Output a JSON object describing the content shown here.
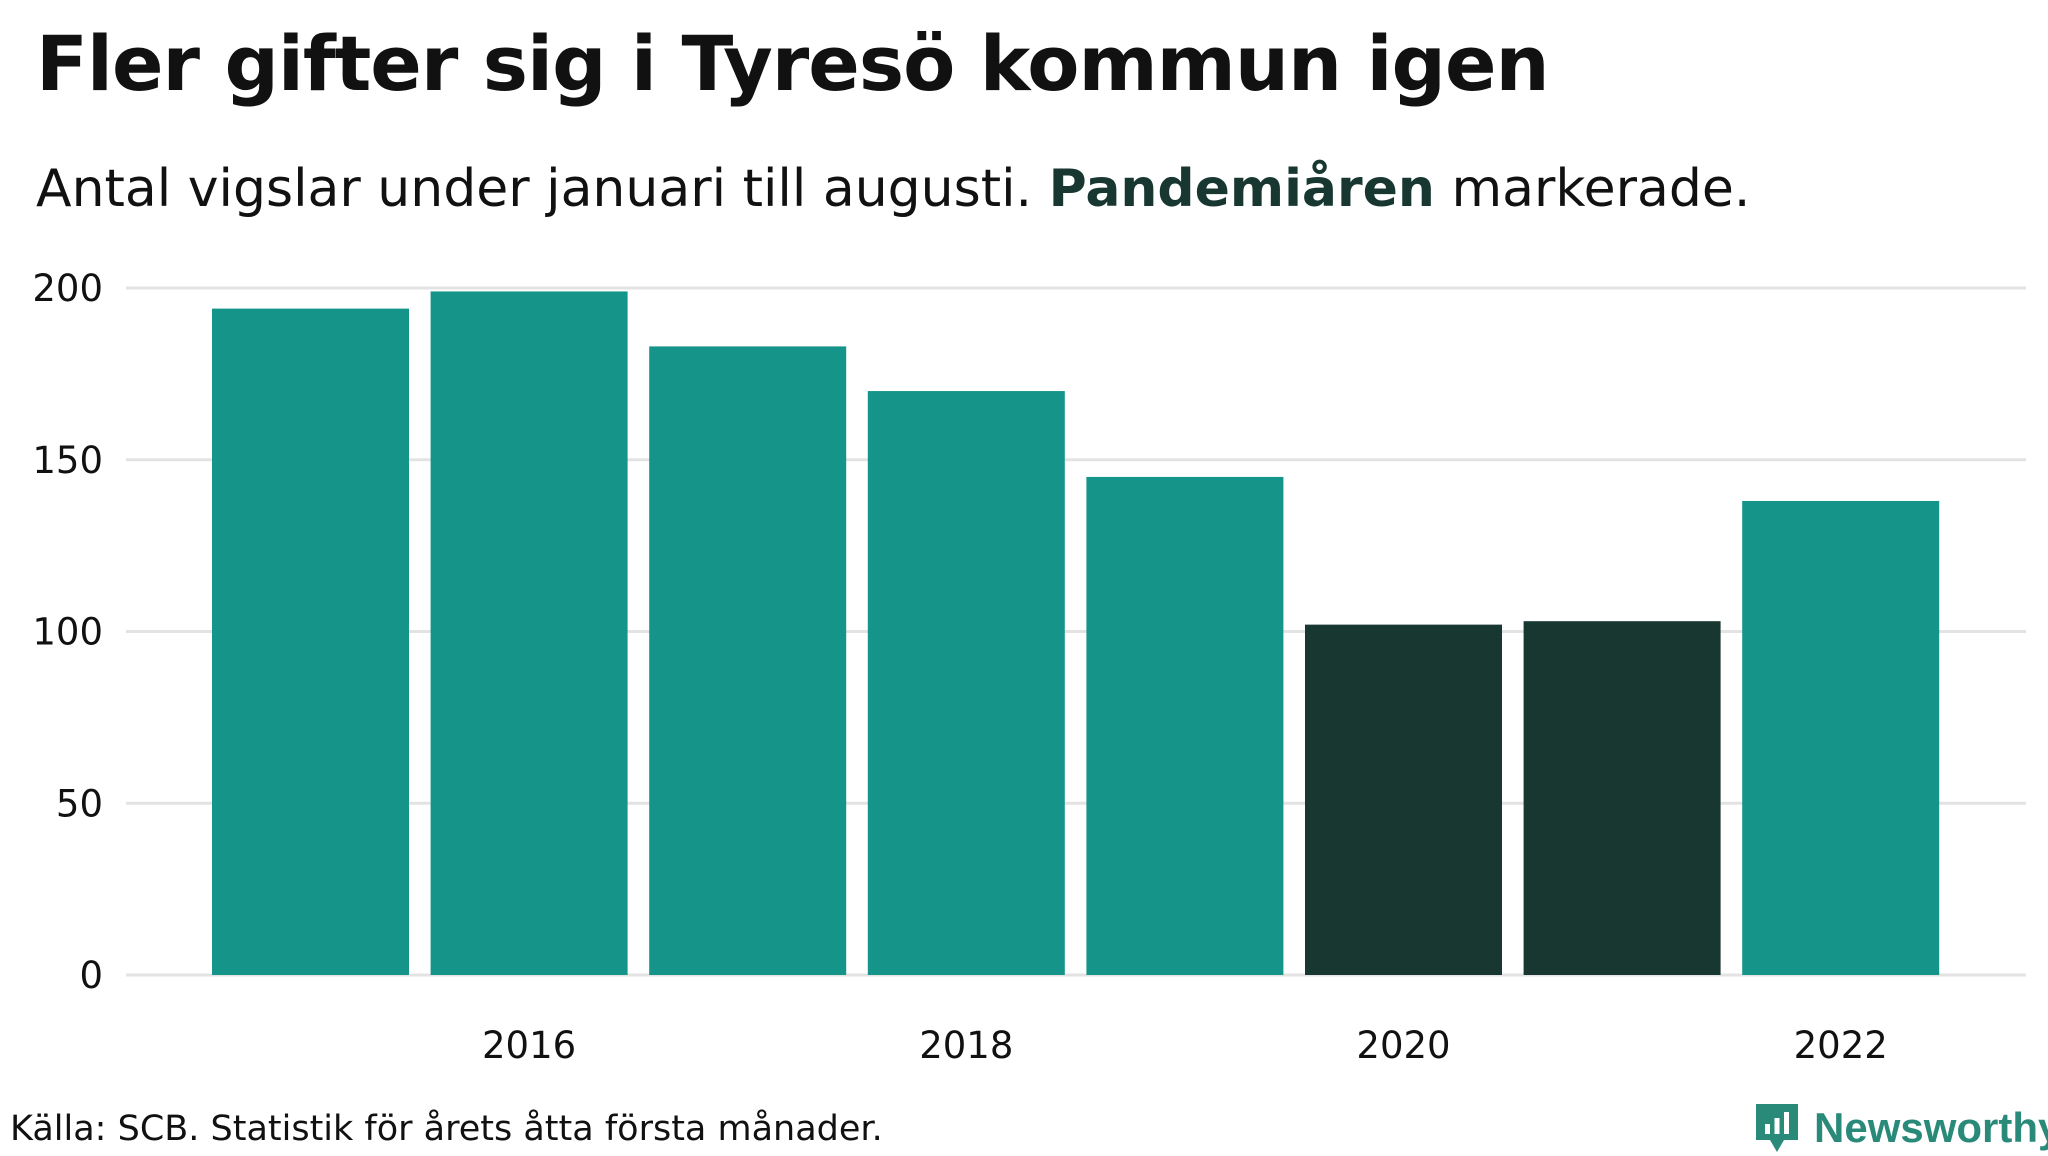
{
  "colors": {
    "bar": "#159589",
    "highlight": "#183731",
    "grid": "#e3e3e3",
    "text": "#111111",
    "logo": "#2a8a7a"
  },
  "header": {
    "title": "Fler gifter sig i Tyresö kommun igen",
    "subtitle_before": "Antal vigslar under januari till augusti. ",
    "subtitle_highlight": "Pandemiåren",
    "subtitle_after": " markerade."
  },
  "chart_data": {
    "type": "bar",
    "title": "Fler gifter sig i Tyresö kommun igen",
    "subtitle": "Antal vigslar under januari till augusti. Pandemiåren markerade.",
    "xlabel": "",
    "ylabel": "",
    "categories": [
      2015,
      2016,
      2017,
      2018,
      2019,
      2020,
      2021,
      2022
    ],
    "values": [
      194,
      199,
      183,
      170,
      145,
      102,
      103,
      138
    ],
    "highlighted": [
      2020,
      2021
    ],
    "ylim": [
      0,
      200
    ],
    "yticks": [
      0,
      50,
      100,
      150,
      200
    ],
    "xticks": [
      2016,
      2018,
      2020,
      2022
    ],
    "grid": true
  },
  "footer": {
    "source": "Källa: SCB. Statistik för årets åtta första månader.",
    "logo_text": "Newsworthy"
  }
}
